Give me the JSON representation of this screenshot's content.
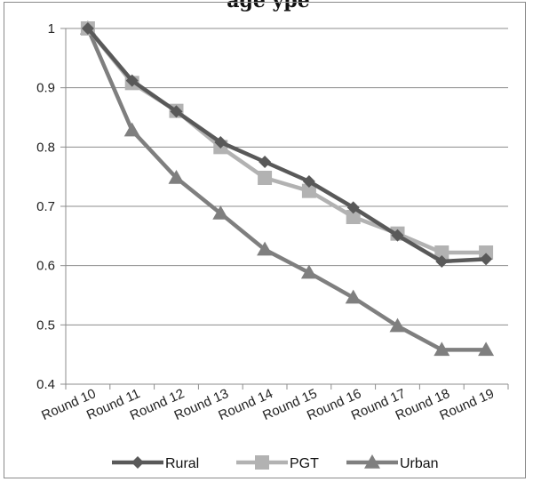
{
  "chart_data": {
    "type": "line",
    "title": "",
    "xlabel": "",
    "ylabel": "",
    "categories": [
      "Round 10",
      "Round 11",
      "Round 12",
      "Round 13",
      "Round 14",
      "Round 15",
      "Round 16",
      "Round 17",
      "Round 18",
      "Round 19"
    ],
    "y_tick_labels": [
      "0.4",
      "0.5",
      "0.6",
      "0.7",
      "0.8",
      "0.9",
      "1"
    ],
    "ylim": [
      0.4,
      1.0
    ],
    "grid": "horizontal",
    "legend_position": "bottom",
    "series": [
      {
        "name": "Rural",
        "marker": "diamond",
        "color": "#595959",
        "values": [
          1.0,
          0.912,
          0.86,
          0.808,
          0.775,
          0.742,
          0.698,
          0.651,
          0.607,
          0.611
        ]
      },
      {
        "name": "PGT",
        "marker": "square",
        "color": "#b2b2b2",
        "values": [
          1.0,
          0.908,
          0.861,
          0.8,
          0.748,
          0.726,
          0.682,
          0.654,
          0.622,
          0.622
        ]
      },
      {
        "name": "Urban",
        "marker": "triangle",
        "color": "#7f7f7f",
        "values": [
          1.0,
          0.828,
          0.748,
          0.688,
          0.627,
          0.588,
          0.546,
          0.498,
          0.458,
          0.458
        ]
      }
    ]
  },
  "header_fragment": "age                     ype"
}
